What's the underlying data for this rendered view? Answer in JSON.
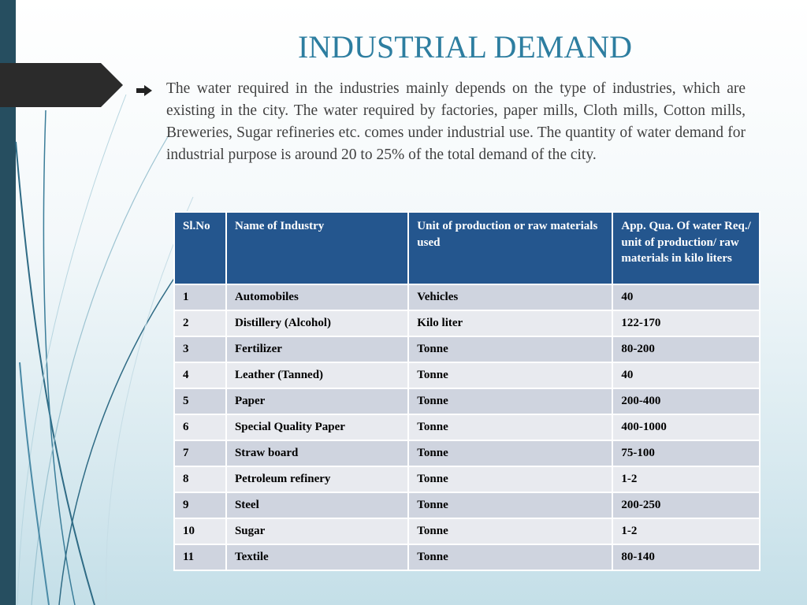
{
  "slide": {
    "title": "INDUSTRIAL DEMAND",
    "bullet_icon": "arrow-right-icon",
    "paragraph": "The water required in the industries mainly depends on the type of industries, which are existing in the city. The water required by factories, paper mills, Cloth mills, Cotton mills, Breweries, Sugar refineries etc. comes under industrial use. The quantity of water demand for industrial purpose is around 20 to 25% of the total demand of the city."
  },
  "table": {
    "headers": [
      "Sl.No",
      "Name of Industry",
      "Unit of production or raw materials used",
      "App. Qua. Of water Req./ unit of production/ raw materials in kilo liters"
    ],
    "rows": [
      [
        "1",
        "Automobiles",
        "Vehicles",
        "40"
      ],
      [
        "2",
        "Distillery (Alcohol)",
        "Kilo liter",
        "122-170"
      ],
      [
        "3",
        "Fertilizer",
        "Tonne",
        "80-200"
      ],
      [
        "4",
        "Leather (Tanned)",
        "Tonne",
        "40"
      ],
      [
        "5",
        "Paper",
        "Tonne",
        "200-400"
      ],
      [
        "6",
        "Special Quality Paper",
        "Tonne",
        "400-1000"
      ],
      [
        "7",
        "Straw board",
        "Tonne",
        "75-100"
      ],
      [
        "8",
        "Petroleum refinery",
        "Tonne",
        "1-2"
      ],
      [
        "9",
        "Steel",
        "Tonne",
        "200-250"
      ],
      [
        "10",
        "Sugar",
        "Tonne",
        "1-2"
      ],
      [
        "11",
        "Textile",
        "Tonne",
        "80-140"
      ]
    ]
  },
  "colors": {
    "title": "#2d7ea0",
    "header_bg": "#24568e",
    "row_odd": "#cfd4df",
    "row_even": "#e8eaef",
    "left_bar": "#264e60",
    "tab": "#2b2b2b"
  }
}
